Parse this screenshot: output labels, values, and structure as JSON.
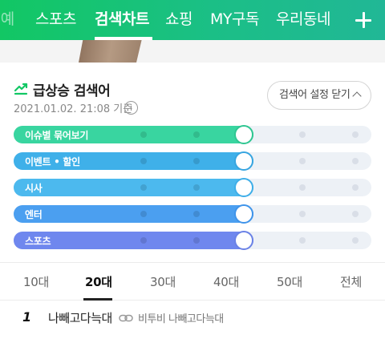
{
  "nav": {
    "items": [
      {
        "label": "연예",
        "partial_label": "l예",
        "state": "faded"
      },
      {
        "label": "스포츠"
      },
      {
        "label": "검색차트",
        "state": "active"
      },
      {
        "label": "쇼핑"
      },
      {
        "label": "MY구독"
      },
      {
        "label": "우리동네"
      }
    ],
    "add_icon": "plus-icon"
  },
  "section": {
    "icon": "trending-up-icon",
    "title": "급상승 검색어",
    "timestamp": "2021.01.02. 21:08 기준",
    "info_glyph": "i",
    "settings_button": "검색어 설정 닫기"
  },
  "filters": [
    {
      "label": "이슈별 묶어보기",
      "level": 0.67,
      "color": "#39d5a0",
      "knob_border": "#2fc691"
    },
    {
      "label": "이벤트 • 할인",
      "level": 0.67,
      "color": "#3fb0e9",
      "knob_border": "#37a5e0"
    },
    {
      "label": "시사",
      "level": 0.67,
      "color": "#4cb9ee",
      "knob_border": "#3eaee8"
    },
    {
      "label": "엔터",
      "level": 0.67,
      "color": "#4b9ff0",
      "knob_border": "#3f94ea"
    },
    {
      "label": "스포츠",
      "level": 0.67,
      "color": "#6f87ee",
      "knob_border": "#6a82e6"
    }
  ],
  "age_tabs": [
    {
      "label": "10대"
    },
    {
      "label": "20대",
      "active": true
    },
    {
      "label": "30대"
    },
    {
      "label": "40대"
    },
    {
      "label": "50대"
    },
    {
      "label": "전체"
    }
  ],
  "ranking": [
    {
      "rank": "1",
      "keyword": "나빼고다늑대",
      "related": "비투비 나빼고다늑대"
    }
  ],
  "colors": {
    "nav_green": "#12c764",
    "text_dark": "#222222"
  }
}
